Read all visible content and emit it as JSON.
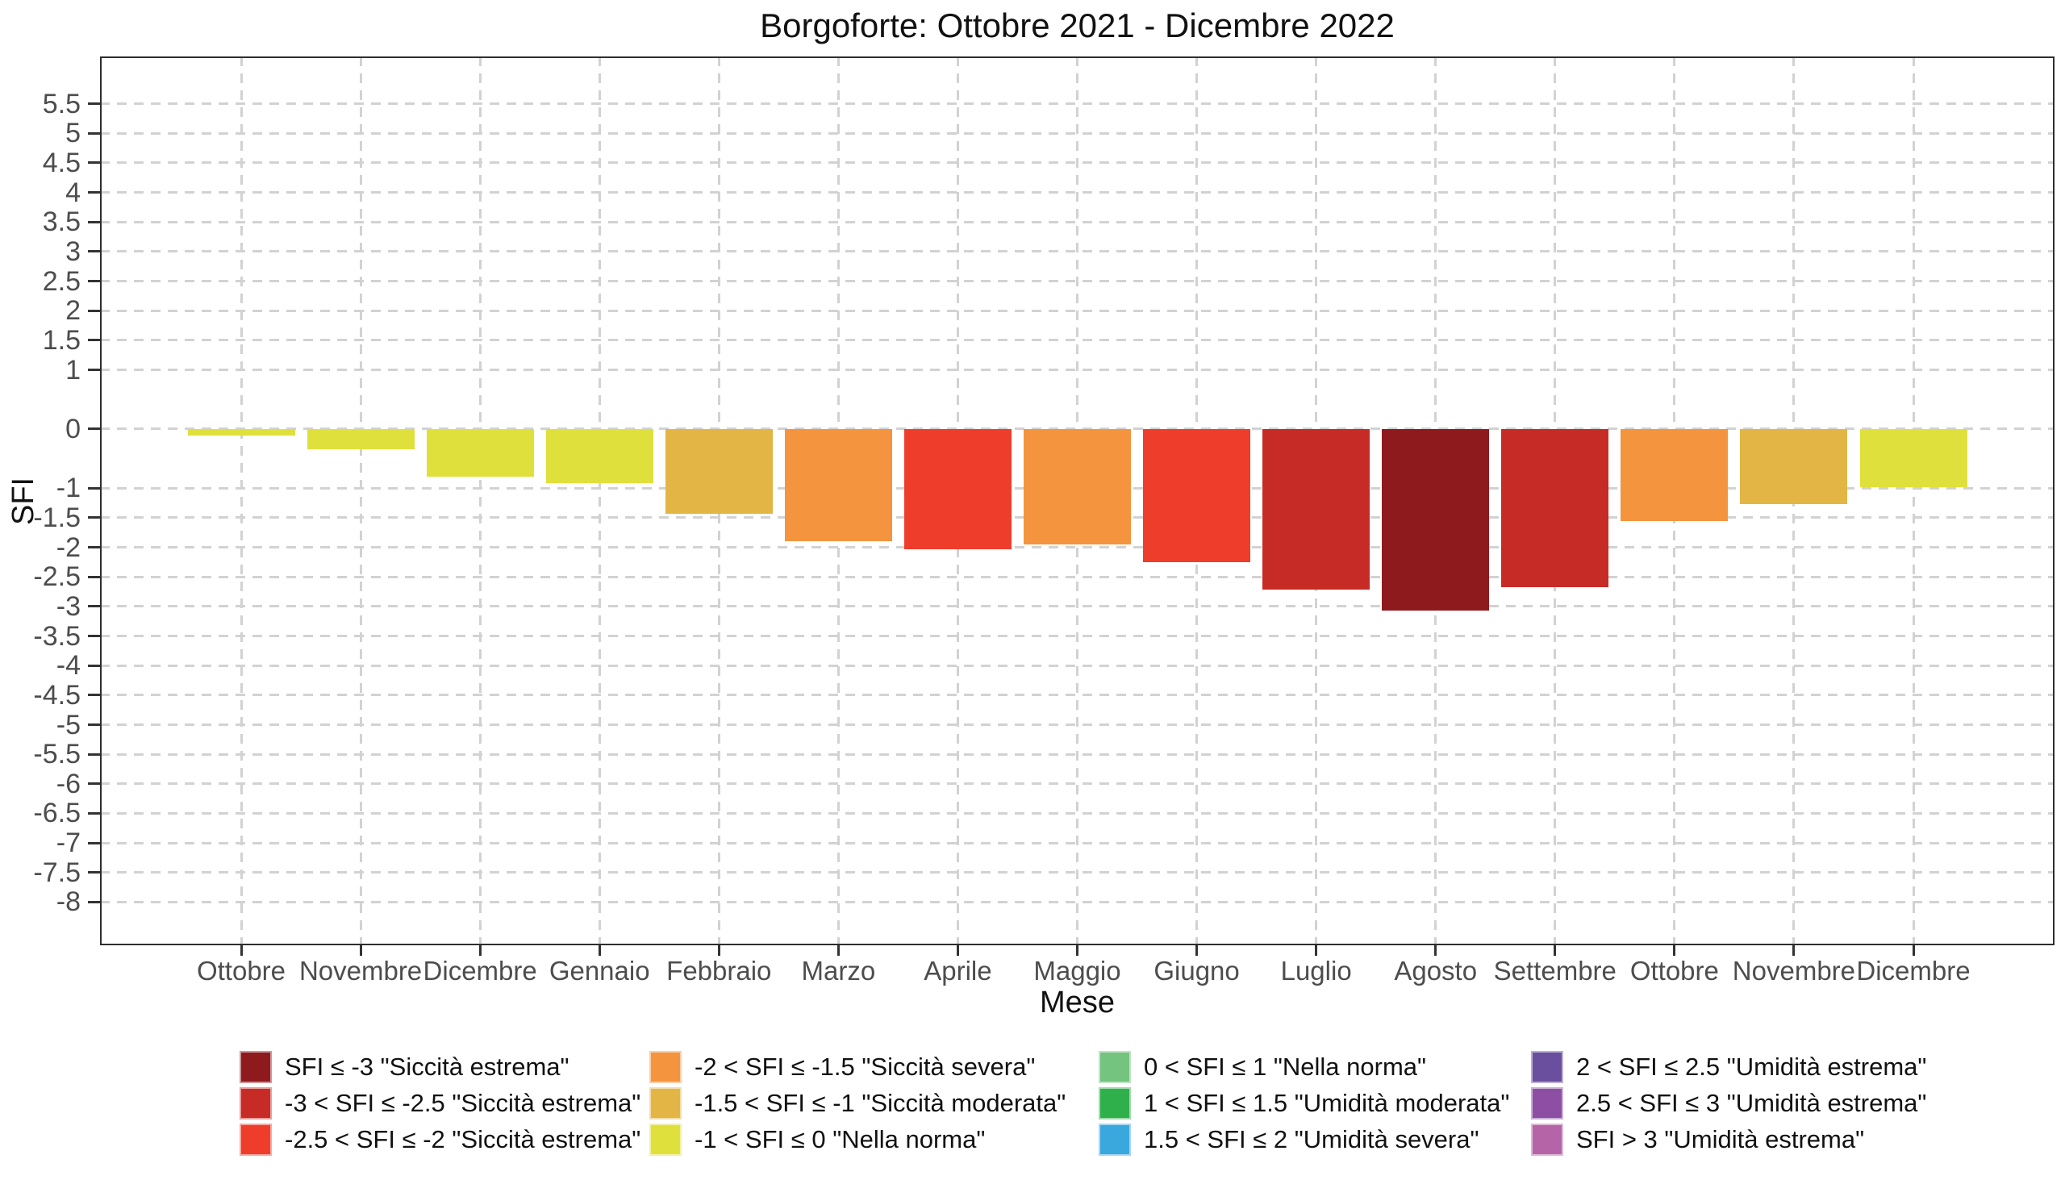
{
  "page": {
    "background": "#ffffff"
  },
  "chart_data": {
    "type": "bar",
    "title": "Borgoforte: Ottobre 2021 - Dicembre 2022",
    "xlabel": "Mese",
    "ylabel": "SFI",
    "categories": [
      "Ottobre",
      "Novembre",
      "Dicembre",
      "Gennaio",
      "Febbraio",
      "Marzo",
      "Aprile",
      "Maggio",
      "Giugno",
      "Luglio",
      "Agosto",
      "Settembre",
      "Ottobre",
      "Novembre",
      "Dicembre"
    ],
    "values": [
      -0.11,
      -0.34,
      -0.8,
      -0.91,
      -1.43,
      -1.9,
      -2.03,
      -1.95,
      -2.25,
      -2.72,
      -3.07,
      -2.68,
      -1.56,
      -1.27,
      -0.98
    ],
    "bar_colors": [
      "#e0e03c",
      "#e0e03c",
      "#e0e03c",
      "#e0e03c",
      "#e2b545",
      "#f4943f",
      "#ee3e2b",
      "#f4943f",
      "#ee3e2b",
      "#c72b26",
      "#8f1a1d",
      "#c72b26",
      "#f4943f",
      "#e2b545",
      "#e0e03c"
    ],
    "ylim": [
      -8.73,
      6.3
    ],
    "yticks": [
      5.5,
      5,
      4.5,
      4,
      3.5,
      3,
      2.5,
      2,
      1.5,
      1,
      0,
      -1,
      -1.5,
      -2,
      -2.5,
      -3,
      -3.5,
      -4,
      -4.5,
      -5,
      -5.5,
      -6,
      -6.5,
      -7,
      -7.5,
      -8
    ],
    "grid": "dashed horizontal and vertical",
    "legend_position": "bottom",
    "legend": [
      {
        "label": "SFI ≤ -3 \"Siccità estrema\"",
        "color": "#8f1a1d"
      },
      {
        "label": "-3 < SFI ≤ -2.5 \"Siccità estrema\"",
        "color": "#c72b26"
      },
      {
        "label": "-2.5 < SFI ≤ -2 \"Siccità estrema\"",
        "color": "#ee3e2b"
      },
      {
        "label": "-2 < SFI ≤ -1.5 \"Siccità severa\"",
        "color": "#f4943f"
      },
      {
        "label": "-1.5 < SFI ≤ -1 \"Siccità moderata\"",
        "color": "#e2b545"
      },
      {
        "label": "-1 < SFI ≤ 0 \"Nella norma\"",
        "color": "#e0e03c"
      },
      {
        "label": "0 < SFI ≤ 1 \"Nella norma\"",
        "color": "#74c37e"
      },
      {
        "label": "1 < SFI ≤ 1.5 \"Umidità moderata\"",
        "color": "#2fb04a"
      },
      {
        "label": "1.5 < SFI ≤ 2 \"Umidità severa\"",
        "color": "#3aa8dd"
      },
      {
        "label": "2 < SFI ≤ 2.5 \"Umidità estrema\"",
        "color": "#6a4f9e"
      },
      {
        "label": "2.5 < SFI ≤ 3 \"Umidità estrema\"",
        "color": "#8c4fa4"
      },
      {
        "label": "SFI > 3 \"Umidità estrema\"",
        "color": "#b565a7"
      }
    ]
  }
}
